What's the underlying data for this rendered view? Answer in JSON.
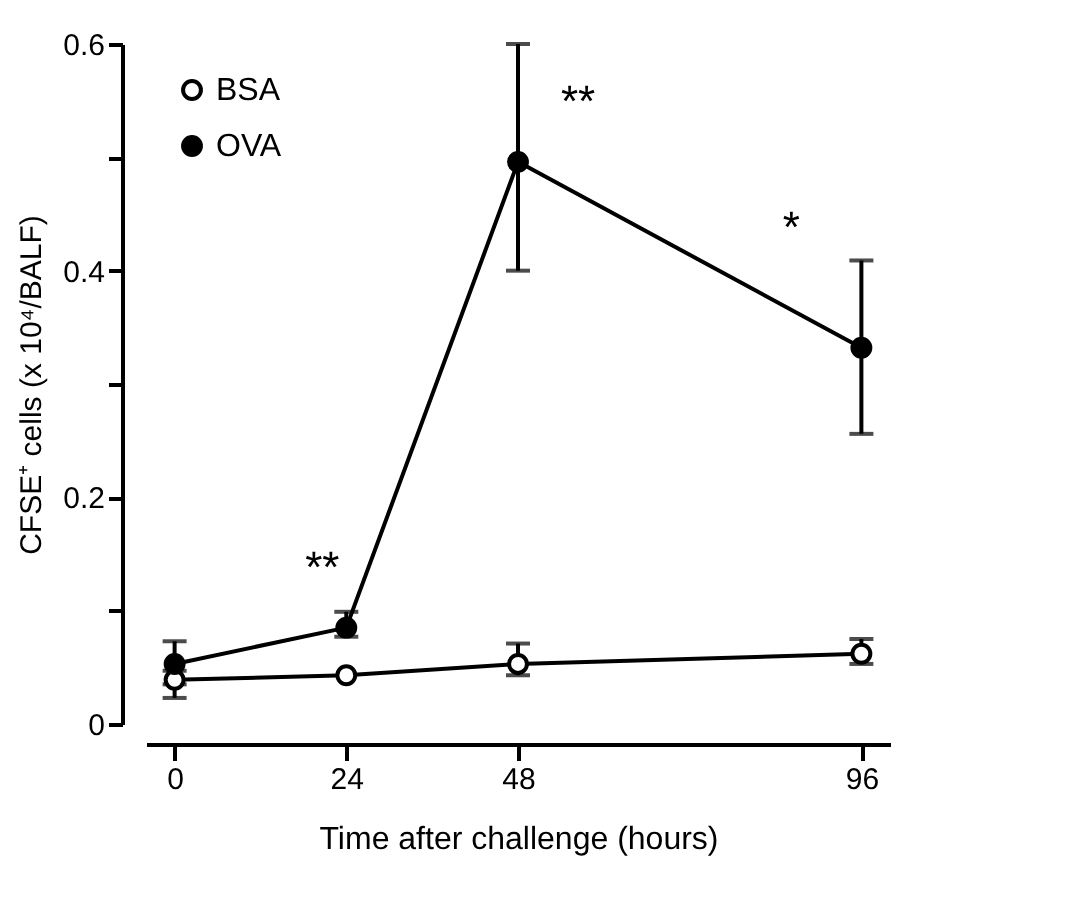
{
  "chart_data": {
    "type": "line",
    "xlabel": "Time after challenge (hours)",
    "ylabel": "CFSE⁺ cells (x 10⁴/BALF)",
    "x": [
      0,
      24,
      48,
      96
    ],
    "series": [
      {
        "name": "BSA",
        "color": "#000000",
        "values": [
          0.039,
          0.043,
          0.053,
          0.062
        ],
        "errors": [
          [
            0.023,
            0.047
          ],
          null,
          [
            0.043,
            0.071
          ],
          [
            0.053,
            0.075
          ]
        ]
      },
      {
        "name": "OVA",
        "color": "#000000",
        "values": [
          0.053,
          0.085,
          0.496,
          0.332
        ],
        "errors": [
          [
            0.035,
            0.073
          ],
          [
            0.077,
            0.099
          ],
          [
            0.4,
            0.6
          ],
          [
            0.256,
            0.409
          ]
        ]
      }
    ],
    "annotations": [
      {
        "text": "**",
        "x": 24,
        "y": 0.085
      },
      {
        "text": "**",
        "x": 48,
        "y": 0.496
      },
      {
        "text": "*",
        "x": 96,
        "y": 0.332
      }
    ],
    "xlim": [
      -4,
      100
    ],
    "xticks": [
      0,
      24,
      48,
      96
    ],
    "ylim": [
      0,
      0.6
    ],
    "yticks": [
      0,
      {
        "value": 0.1,
        "label": null
      },
      0.2,
      {
        "value": 0.3,
        "label": null
      },
      0.4,
      {
        "value": 0.5,
        "label": null
      },
      0.6
    ],
    "marker": "circle",
    "line_style": "solid",
    "grid": false,
    "legend": "top left"
  }
}
